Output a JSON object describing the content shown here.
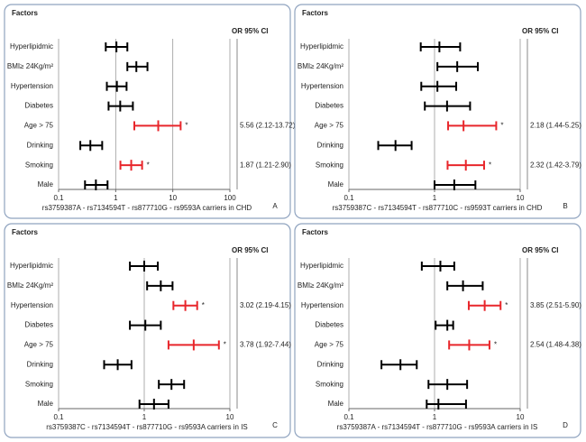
{
  "chart_data": [
    {
      "type": "forest",
      "title": "Factors",
      "ci_header": "OR 95% CI",
      "panel_label": "A",
      "xlabel": "rs3759387A - rs7134594T - rs877710G - rs9593A  carriers in CHD",
      "categories": [
        "Hyperlipidmic",
        "BMI≥ 24Kg/m²",
        "Hypertension",
        "Diabetes",
        "Age > 75",
        "Drinking",
        "Smoking",
        "Male"
      ],
      "values": [
        1.03,
        2.3,
        1.05,
        1.2,
        5.56,
        0.36,
        1.87,
        0.45
      ],
      "lower": [
        0.67,
        1.6,
        0.7,
        0.75,
        2.12,
        0.24,
        1.21,
        0.29
      ],
      "upper": [
        1.6,
        3.6,
        1.55,
        2.0,
        13.72,
        0.58,
        2.9,
        0.72
      ],
      "colors": [
        "#000000",
        "#000000",
        "#000000",
        "#000000",
        "#e8262b",
        "#000000",
        "#e8262b",
        "#000000"
      ],
      "markers": [
        null,
        null,
        null,
        null,
        "*",
        null,
        "*",
        null
      ],
      "ci_labels": [
        null,
        null,
        null,
        null,
        "5.56 (2.12-13.72)",
        null,
        "1.87 (1.21-2.90)",
        null
      ],
      "log_x": true,
      "xlim": [
        0.1,
        100
      ],
      "xticks": [
        0.1,
        1,
        10,
        100
      ],
      "grid": true
    },
    {
      "type": "forest",
      "title": "Factors",
      "ci_header": "OR 95% CI",
      "panel_label": "B",
      "xlabel": "rs3759387C - rs7134594T - rs877710C - rs9593T  carriers in CHD",
      "categories": [
        "Hyperlipidmic",
        "BMI≥ 24Kg/m²",
        "Hypertension",
        "Diabetes",
        "Age > 75",
        "Drinking",
        "Smoking",
        "Male"
      ],
      "values": [
        1.14,
        1.84,
        1.08,
        1.4,
        2.18,
        0.35,
        2.32,
        1.7
      ],
      "lower": [
        0.69,
        1.08,
        0.7,
        0.77,
        1.44,
        0.22,
        1.42,
        1.0
      ],
      "upper": [
        1.99,
        3.2,
        1.79,
        2.6,
        5.25,
        0.54,
        3.79,
        3.0
      ],
      "colors": [
        "#000000",
        "#000000",
        "#000000",
        "#000000",
        "#e8262b",
        "#000000",
        "#e8262b",
        "#000000"
      ],
      "markers": [
        null,
        null,
        null,
        null,
        "*",
        null,
        "*",
        null
      ],
      "ci_labels": [
        null,
        null,
        null,
        null,
        "2.18 (1.44-5.25)",
        null,
        "2.32 (1.42-3.79)",
        null
      ],
      "log_x": true,
      "xlim": [
        0.1,
        10
      ],
      "xticks": [
        0.1,
        1,
        10
      ],
      "grid": true
    },
    {
      "type": "forest",
      "title": "Factors",
      "ci_header": "OR 95% CI",
      "panel_label": "C",
      "xlabel": "rs3759387C - rs7134594T - rs877710G - rs9593A  carriers in IS",
      "categories": [
        "Hyperlipidmic",
        "BMI≥ 24Kg/m²",
        "Hypertension",
        "Diabetes",
        "Age > 75",
        "Drinking",
        "Smoking",
        "Male"
      ],
      "values": [
        1.0,
        1.56,
        3.02,
        1.03,
        3.78,
        0.49,
        2.08,
        1.3
      ],
      "lower": [
        0.68,
        1.08,
        2.19,
        0.68,
        1.92,
        0.34,
        1.48,
        0.88
      ],
      "upper": [
        1.44,
        2.14,
        4.15,
        1.56,
        7.44,
        0.71,
        2.92,
        1.92
      ],
      "colors": [
        "#000000",
        "#000000",
        "#e8262b",
        "#000000",
        "#e8262b",
        "#000000",
        "#000000",
        "#000000"
      ],
      "markers": [
        null,
        null,
        "*",
        null,
        "*",
        null,
        null,
        null
      ],
      "ci_labels": [
        null,
        null,
        "3.02 (2.19-4.15)",
        null,
        "3.78 (1.92-7.44)",
        null,
        null,
        null
      ],
      "log_x": true,
      "xlim": [
        0.1,
        10
      ],
      "xticks": [
        0.1,
        1,
        10
      ],
      "grid": true
    },
    {
      "type": "forest",
      "title": "Factors",
      "ci_header": "OR 95% CI",
      "panel_label": "D",
      "xlabel": "rs3759387A - rs7134594T - rs877710G - rs9593A  carriers in IS",
      "categories": [
        "Hyperlipidmic",
        "BMI≥ 24Kg/m²",
        "Hypertension",
        "Diabetes",
        "Age > 75",
        "Drinking",
        "Smoking",
        "Male"
      ],
      "values": [
        1.17,
        2.15,
        3.85,
        1.41,
        2.54,
        0.4,
        1.41,
        1.11
      ],
      "lower": [
        0.71,
        1.41,
        2.51,
        1.03,
        1.48,
        0.24,
        0.85,
        0.81
      ],
      "upper": [
        1.7,
        3.65,
        5.9,
        1.65,
        4.38,
        0.62,
        2.4,
        2.33
      ],
      "colors": [
        "#000000",
        "#000000",
        "#e8262b",
        "#000000",
        "#e8262b",
        "#000000",
        "#000000",
        "#000000"
      ],
      "markers": [
        null,
        null,
        "*",
        null,
        "*",
        null,
        null,
        null
      ],
      "ci_labels": [
        null,
        null,
        "3.85 (2.51-5.90)",
        null,
        "2.54 (1.48-4.38)",
        null,
        null,
        null
      ],
      "log_x": true,
      "xlim": [
        0.1,
        10
      ],
      "xticks": [
        0.1,
        1,
        10
      ],
      "grid": true
    }
  ]
}
